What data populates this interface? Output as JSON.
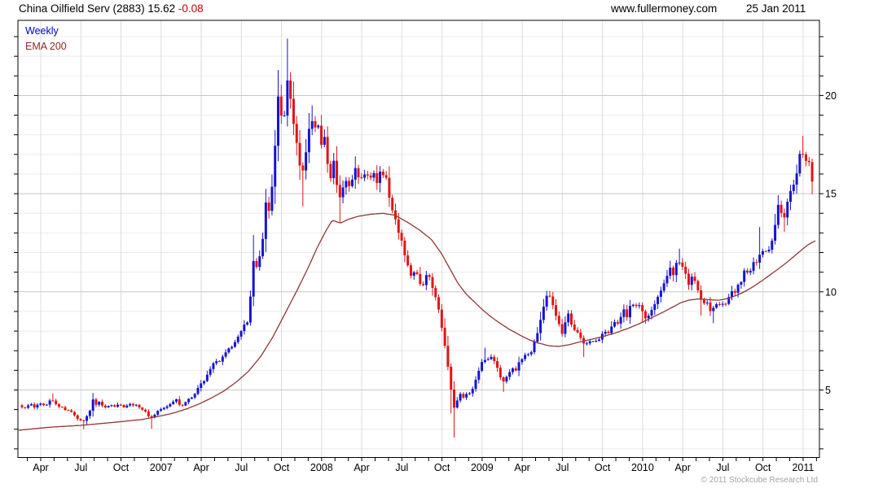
{
  "header": {
    "title_main": "China Oilfield Serv (2883) 15.62 ",
    "title_change": "-0.08",
    "website": "www.fullermoney.com",
    "date": "25 Jan 2011"
  },
  "legend": {
    "series1": "Weekly",
    "series2": "EMA 200"
  },
  "footer": {
    "copyright": "© 2011 Stockcube Research Ltd"
  },
  "colors": {
    "up": "#1414d2",
    "down": "#e21414",
    "ema": "#8c3838",
    "grid_minor": "#ebebeb",
    "grid_major": "#c6c6c6",
    "grid_vertical": "#dcdcdc",
    "axis": "#000000",
    "change": "#cc0000",
    "legend_weekly": "#0000c8",
    "legend_ema": "#8c2828",
    "copyright": "#a5a5a5"
  },
  "chart_data": {
    "type": "candlestick",
    "title": "China Oilfield Serv (2883)",
    "period": "Weekly",
    "overlay": "EMA 200",
    "last_price": 15.62,
    "change": -0.08,
    "y_axis": {
      "labeled_ticks": [
        5,
        10,
        15,
        20
      ],
      "minor_step": 1,
      "min": 1.56,
      "max": 23.83,
      "side": "right"
    },
    "x_axis": {
      "labels": [
        "Apr",
        "Jul",
        "Oct",
        "2007",
        "Apr",
        "Jul",
        "Oct",
        "2008",
        "Apr",
        "Jul",
        "Oct",
        "2009",
        "Apr",
        "Jul",
        "Oct",
        "2010",
        "Apr",
        "Jul",
        "Oct",
        "2011"
      ]
    },
    "price_path": [
      [
        27,
        4.15
      ],
      [
        31,
        4.05
      ],
      [
        35,
        4.3
      ],
      [
        39,
        4.2
      ],
      [
        43,
        4.1
      ],
      [
        47,
        4.3
      ],
      [
        51,
        4.35
      ],
      [
        55,
        4.2
      ],
      [
        59,
        4.3
      ],
      [
        63,
        4.6
      ],
      [
        67,
        4.4
      ],
      [
        71,
        4.25
      ],
      [
        75,
        4.15
      ],
      [
        79,
        4.05
      ],
      [
        83,
        3.95
      ],
      [
        87,
        3.85
      ],
      [
        91,
        3.7
      ],
      [
        95,
        3.55
      ],
      [
        99,
        3.5
      ],
      [
        103,
        3.4
      ],
      [
        107,
        3.7
      ],
      [
        110,
        3.9
      ],
      [
        114,
        4.55
      ],
      [
        118,
        4.3
      ],
      [
        122,
        4.35
      ],
      [
        126,
        4.15
      ],
      [
        130,
        4.1
      ],
      [
        134,
        4.2
      ],
      [
        138,
        4.25
      ],
      [
        142,
        4.15
      ],
      [
        146,
        4.3
      ],
      [
        150,
        4.2
      ],
      [
        154,
        4.15
      ],
      [
        158,
        4.25
      ],
      [
        162,
        4.3
      ],
      [
        166,
        4.2
      ],
      [
        170,
        4.15
      ],
      [
        174,
        4.0
      ],
      [
        178,
        3.9
      ],
      [
        182,
        3.7
      ],
      [
        186,
        3.6
      ],
      [
        190,
        3.75
      ],
      [
        194,
        3.9
      ],
      [
        198,
        4.0
      ],
      [
        202,
        4.1
      ],
      [
        206,
        4.2
      ],
      [
        210,
        4.3
      ],
      [
        214,
        4.4
      ],
      [
        218,
        4.5
      ],
      [
        222,
        4.15
      ],
      [
        226,
        4.3
      ],
      [
        230,
        4.45
      ],
      [
        234,
        4.6
      ],
      [
        238,
        4.75
      ],
      [
        242,
        5.0
      ],
      [
        246,
        5.25
      ],
      [
        250,
        5.5
      ],
      [
        254,
        5.7
      ],
      [
        258,
        6.0
      ],
      [
        262,
        6.35
      ],
      [
        266,
        6.5
      ],
      [
        270,
        6.45
      ],
      [
        274,
        6.7
      ],
      [
        278,
        6.9
      ],
      [
        282,
        7.1
      ],
      [
        286,
        7.3
      ],
      [
        290,
        7.5
      ],
      [
        294,
        7.7
      ],
      [
        298,
        8.1
      ],
      [
        302,
        8.4
      ],
      [
        306,
        8.6
      ],
      [
        310,
        11.6
      ],
      [
        314,
        11.0
      ],
      [
        318,
        11.7
      ],
      [
        322,
        12.5
      ],
      [
        326,
        14.7
      ],
      [
        330,
        14.1
      ],
      [
        334,
        15.3
      ],
      [
        338,
        17.6
      ],
      [
        342,
        20.2
      ],
      [
        346,
        18.4
      ],
      [
        350,
        19.4
      ],
      [
        354,
        21.0
      ],
      [
        358,
        19.5
      ],
      [
        362,
        17.9
      ],
      [
        366,
        17.1
      ],
      [
        370,
        15.9
      ],
      [
        374,
        16.7
      ],
      [
        378,
        17.8
      ],
      [
        382,
        18.8
      ],
      [
        386,
        18.1
      ],
      [
        390,
        18.5
      ],
      [
        394,
        17.5
      ],
      [
        398,
        17.9
      ],
      [
        402,
        16.7
      ],
      [
        406,
        15.9
      ],
      [
        410,
        16.5
      ],
      [
        414,
        15.4
      ],
      [
        418,
        14.9
      ],
      [
        422,
        15.6
      ],
      [
        426,
        16.0
      ],
      [
        430,
        15.3
      ],
      [
        434,
        15.9
      ],
      [
        438,
        16.3
      ],
      [
        442,
        15.8
      ],
      [
        446,
        16.1
      ],
      [
        450,
        15.6
      ],
      [
        454,
        15.9
      ],
      [
        458,
        16.25
      ],
      [
        462,
        15.4
      ],
      [
        466,
        15.9
      ],
      [
        470,
        16.2
      ],
      [
        474,
        15.6
      ],
      [
        478,
        14.9
      ],
      [
        482,
        14.2
      ],
      [
        486,
        13.6
      ],
      [
        490,
        12.9
      ],
      [
        494,
        12.3
      ],
      [
        498,
        11.7
      ],
      [
        502,
        11.2
      ],
      [
        506,
        10.8
      ],
      [
        510,
        11.25
      ],
      [
        514,
        10.4
      ],
      [
        518,
        10.1
      ],
      [
        522,
        10.6
      ],
      [
        526,
        10.9
      ],
      [
        530,
        10.3
      ],
      [
        534,
        9.7
      ],
      [
        538,
        9.1
      ],
      [
        542,
        8.3
      ],
      [
        546,
        7.2
      ],
      [
        550,
        6.1
      ],
      [
        554,
        4.9
      ],
      [
        558,
        3.95
      ],
      [
        562,
        4.5
      ],
      [
        566,
        4.9
      ],
      [
        570,
        4.55
      ],
      [
        574,
        5.0
      ],
      [
        578,
        4.75
      ],
      [
        582,
        5.25
      ],
      [
        586,
        5.8
      ],
      [
        590,
        6.3
      ],
      [
        594,
        6.65
      ],
      [
        598,
        6.4
      ],
      [
        602,
        6.8
      ],
      [
        606,
        6.5
      ],
      [
        610,
        6.15
      ],
      [
        614,
        5.75
      ],
      [
        618,
        5.4
      ],
      [
        622,
        5.65
      ],
      [
        626,
        5.9
      ],
      [
        630,
        6.2
      ],
      [
        634,
        6.05
      ],
      [
        638,
        6.4
      ],
      [
        642,
        6.7
      ],
      [
        646,
        6.95
      ],
      [
        650,
        6.75
      ],
      [
        654,
        7.2
      ],
      [
        658,
        7.7
      ],
      [
        662,
        8.2
      ],
      [
        666,
        9.0
      ],
      [
        670,
        9.6
      ],
      [
        674,
        9.85
      ],
      [
        678,
        9.4
      ],
      [
        682,
        8.8
      ],
      [
        686,
        8.3
      ],
      [
        690,
        7.95
      ],
      [
        694,
        8.35
      ],
      [
        698,
        8.8
      ],
      [
        702,
        8.4
      ],
      [
        706,
        7.85
      ],
      [
        710,
        7.95
      ],
      [
        714,
        7.6
      ],
      [
        718,
        7.3
      ],
      [
        722,
        7.55
      ],
      [
        726,
        7.4
      ],
      [
        730,
        7.65
      ],
      [
        734,
        7.5
      ],
      [
        738,
        7.75
      ],
      [
        742,
        8.0
      ],
      [
        746,
        7.85
      ],
      [
        750,
        8.2
      ],
      [
        754,
        8.5
      ],
      [
        758,
        8.3
      ],
      [
        762,
        8.7
      ],
      [
        766,
        9.0
      ],
      [
        770,
        8.8
      ],
      [
        774,
        9.2
      ],
      [
        778,
        9.45
      ],
      [
        782,
        9.15
      ],
      [
        786,
        9.5
      ],
      [
        790,
        8.95
      ],
      [
        794,
        8.65
      ],
      [
        798,
        8.85
      ],
      [
        802,
        9.2
      ],
      [
        806,
        9.6
      ],
      [
        810,
        10.0
      ],
      [
        814,
        10.4
      ],
      [
        818,
        10.9
      ],
      [
        822,
        11.2
      ],
      [
        826,
        10.9
      ],
      [
        830,
        11.4
      ],
      [
        834,
        11.6
      ],
      [
        838,
        11.2
      ],
      [
        842,
        10.8
      ],
      [
        846,
        10.45
      ],
      [
        850,
        10.8
      ],
      [
        854,
        10.3
      ],
      [
        858,
        9.85
      ],
      [
        862,
        9.4
      ],
      [
        866,
        9.65
      ],
      [
        870,
        9.25
      ],
      [
        874,
        8.95
      ],
      [
        878,
        9.35
      ],
      [
        882,
        9.55
      ],
      [
        886,
        9.25
      ],
      [
        890,
        9.45
      ],
      [
        894,
        9.7
      ],
      [
        898,
        10.1
      ],
      [
        902,
        9.9
      ],
      [
        906,
        10.3
      ],
      [
        910,
        10.65
      ],
      [
        914,
        11.0
      ],
      [
        918,
        10.8
      ],
      [
        922,
        11.3
      ],
      [
        926,
        11.65
      ],
      [
        930,
        11.4
      ],
      [
        934,
        12.0
      ],
      [
        938,
        12.3
      ],
      [
        942,
        11.9
      ],
      [
        946,
        12.4
      ],
      [
        950,
        12.9
      ],
      [
        954,
        14.4
      ],
      [
        958,
        14.15
      ],
      [
        962,
        13.85
      ],
      [
        966,
        14.4
      ],
      [
        970,
        14.9
      ],
      [
        974,
        15.4
      ],
      [
        978,
        16.0
      ],
      [
        982,
        16.9
      ],
      [
        986,
        16.75
      ],
      [
        990,
        16.4
      ],
      [
        994,
        16.7
      ],
      [
        998,
        16.15
      ],
      [
        1000,
        15.62
      ]
    ],
    "spike_highs": [
      [
        63,
        4.82
      ],
      [
        114,
        4.85
      ],
      [
        310,
        12.9
      ],
      [
        342,
        21.3
      ],
      [
        354,
        22.9
      ],
      [
        382,
        19.5
      ],
      [
        438,
        16.9
      ],
      [
        594,
        7.15
      ],
      [
        674,
        10.05
      ],
      [
        834,
        12.2
      ],
      [
        934,
        13.3
      ],
      [
        954,
        14.75
      ],
      [
        986,
        17.95
      ]
    ],
    "spike_lows": [
      [
        103,
        3.0
      ],
      [
        186,
        3.02
      ],
      [
        370,
        14.35
      ],
      [
        418,
        13.55
      ],
      [
        554,
        3.8
      ],
      [
        558,
        2.58
      ],
      [
        618,
        4.9
      ],
      [
        718,
        6.68
      ],
      [
        790,
        8.45
      ],
      [
        862,
        8.78
      ],
      [
        874,
        8.4
      ],
      [
        962,
        13.05
      ],
      [
        1000,
        15.35
      ]
    ],
    "ema_path": [
      [
        23,
        2.95
      ],
      [
        60,
        3.1
      ],
      [
        100,
        3.2
      ],
      [
        140,
        3.35
      ],
      [
        175,
        3.5
      ],
      [
        200,
        3.7
      ],
      [
        215,
        3.85
      ],
      [
        230,
        4.05
      ],
      [
        245,
        4.3
      ],
      [
        260,
        4.6
      ],
      [
        275,
        4.95
      ],
      [
        290,
        5.4
      ],
      [
        305,
        5.95
      ],
      [
        320,
        6.7
      ],
      [
        335,
        7.7
      ],
      [
        350,
        8.9
      ],
      [
        365,
        10.1
      ],
      [
        378,
        11.2
      ],
      [
        390,
        12.3
      ],
      [
        400,
        13.1
      ],
      [
        408,
        13.65
      ],
      [
        418,
        13.5
      ],
      [
        428,
        13.7
      ],
      [
        440,
        13.85
      ],
      [
        455,
        13.95
      ],
      [
        470,
        14.0
      ],
      [
        485,
        13.9
      ],
      [
        500,
        13.55
      ],
      [
        515,
        13.15
      ],
      [
        530,
        12.65
      ],
      [
        542,
        11.95
      ],
      [
        552,
        11.2
      ],
      [
        562,
        10.45
      ],
      [
        572,
        9.9
      ],
      [
        582,
        9.5
      ],
      [
        592,
        9.1
      ],
      [
        602,
        8.75
      ],
      [
        612,
        8.45
      ],
      [
        625,
        8.1
      ],
      [
        638,
        7.8
      ],
      [
        650,
        7.55
      ],
      [
        662,
        7.38
      ],
      [
        674,
        7.25
      ],
      [
        686,
        7.22
      ],
      [
        698,
        7.3
      ],
      [
        712,
        7.45
      ],
      [
        726,
        7.58
      ],
      [
        740,
        7.72
      ],
      [
        755,
        7.9
      ],
      [
        770,
        8.12
      ],
      [
        785,
        8.38
      ],
      [
        800,
        8.68
      ],
      [
        812,
        8.92
      ],
      [
        824,
        9.18
      ],
      [
        836,
        9.45
      ],
      [
        846,
        9.58
      ],
      [
        858,
        9.64
      ],
      [
        870,
        9.6
      ],
      [
        882,
        9.57
      ],
      [
        894,
        9.66
      ],
      [
        906,
        9.85
      ],
      [
        916,
        10.05
      ],
      [
        926,
        10.3
      ],
      [
        936,
        10.58
      ],
      [
        946,
        10.88
      ],
      [
        956,
        11.18
      ],
      [
        966,
        11.5
      ],
      [
        976,
        11.85
      ],
      [
        986,
        12.2
      ],
      [
        994,
        12.45
      ],
      [
        1002,
        12.62
      ]
    ]
  }
}
